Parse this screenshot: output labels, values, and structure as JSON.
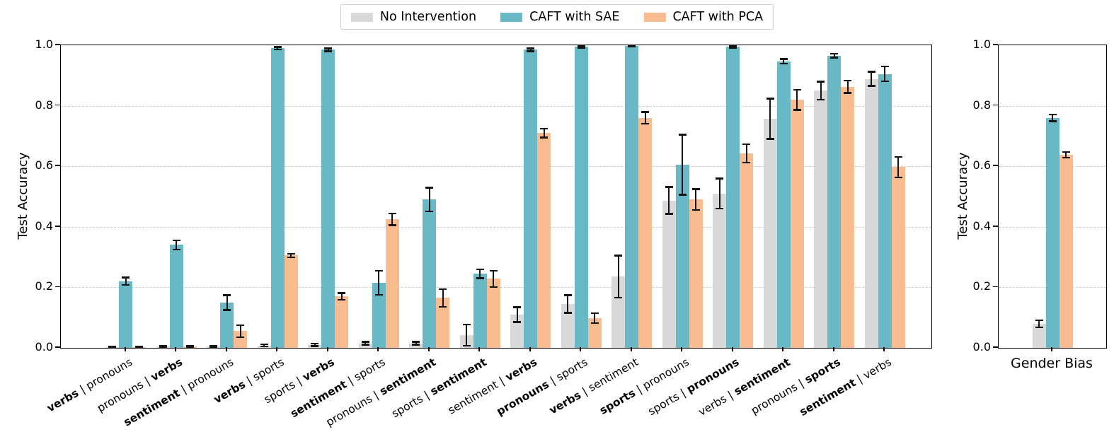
{
  "figure": {
    "background": "#ffffff"
  },
  "legend": {
    "items": [
      {
        "label": "No Intervention",
        "color": "#d9d9d9"
      },
      {
        "label": "CAFT with SAE",
        "color": "#69b8c6"
      },
      {
        "label": "CAFT with PCA",
        "color": "#f9bc90"
      }
    ]
  },
  "chart_data": [
    {
      "type": "bar",
      "title": "",
      "xlabel": "",
      "ylabel": "Test Accuracy",
      "ylim": [
        0,
        1
      ],
      "yticks": [
        0.0,
        0.2,
        0.4,
        0.6,
        0.8,
        1.0
      ],
      "gridlines_dashed_at": [
        0.2,
        0.4,
        0.6,
        0.8
      ],
      "legend_position": "top center, outside axes",
      "separator": " | ",
      "categories": [
        {
          "first": "verbs",
          "second": "pronouns",
          "bold": "first"
        },
        {
          "first": "pronouns",
          "second": "verbs",
          "bold": "second"
        },
        {
          "first": "sentiment",
          "second": "pronouns",
          "bold": "first"
        },
        {
          "first": "verbs",
          "second": "sports",
          "bold": "first"
        },
        {
          "first": "sports",
          "second": "verbs",
          "bold": "second"
        },
        {
          "first": "sentiment",
          "second": "sports",
          "bold": "first"
        },
        {
          "first": "pronouns",
          "second": "sentiment",
          "bold": "second"
        },
        {
          "first": "sports",
          "second": "sentiment",
          "bold": "second"
        },
        {
          "first": "sentiment",
          "second": "verbs",
          "bold": "second"
        },
        {
          "first": "pronouns",
          "second": "sports",
          "bold": "first"
        },
        {
          "first": "verbs",
          "second": "sentiment",
          "bold": "first"
        },
        {
          "first": "sports",
          "second": "pronouns",
          "bold": "first"
        },
        {
          "first": "sports",
          "second": "pronouns",
          "bold": "second"
        },
        {
          "first": "verbs",
          "second": "sentiment",
          "bold": "second"
        },
        {
          "first": "pronouns",
          "second": "sports",
          "bold": "second"
        },
        {
          "first": "sentiment",
          "second": "verbs",
          "bold": "first"
        }
      ],
      "series": [
        {
          "name": "No Intervention",
          "color": "#d9d9d9",
          "values": [
            0.002,
            0.004,
            0.004,
            0.008,
            0.01,
            0.015,
            0.015,
            0.042,
            0.11,
            0.145,
            0.235,
            0.487,
            0.51,
            0.757,
            0.85,
            0.889
          ],
          "errors": [
            0.002,
            0.003,
            0.003,
            0.004,
            0.005,
            0.005,
            0.005,
            0.035,
            0.025,
            0.03,
            0.07,
            0.045,
            0.05,
            0.067,
            0.03,
            0.024
          ]
        },
        {
          "name": "CAFT with SAE",
          "color": "#69b8c6",
          "values": [
            0.22,
            0.34,
            0.15,
            0.99,
            0.985,
            0.215,
            0.49,
            0.245,
            0.985,
            0.995,
            0.998,
            0.605,
            0.995,
            0.947,
            0.966,
            0.905
          ],
          "errors": [
            0.013,
            0.015,
            0.025,
            0.005,
            0.005,
            0.04,
            0.04,
            0.015,
            0.005,
            0.004,
            0.003,
            0.1,
            0.004,
            0.008,
            0.007,
            0.025
          ]
        },
        {
          "name": "CAFT with PCA",
          "color": "#f9bc90",
          "values": [
            0.003,
            0.004,
            0.055,
            0.305,
            0.17,
            0.425,
            0.165,
            0.228,
            0.71,
            0.098,
            0.76,
            0.49,
            0.643,
            0.82,
            0.863,
            0.597
          ],
          "errors": [
            0.002,
            0.003,
            0.02,
            0.006,
            0.012,
            0.02,
            0.03,
            0.027,
            0.015,
            0.017,
            0.02,
            0.035,
            0.031,
            0.034,
            0.021,
            0.035
          ]
        }
      ]
    },
    {
      "type": "bar",
      "title": "",
      "xlabel": "",
      "ylabel": "Test Accuracy",
      "ylim": [
        0,
        1
      ],
      "yticks": [
        0.0,
        0.2,
        0.4,
        0.6,
        0.8,
        1.0
      ],
      "gridlines_dashed_at": [
        0.2,
        0.4,
        0.6,
        0.8
      ],
      "categories": [
        "Gender Bias"
      ],
      "series": [
        {
          "name": "No Intervention",
          "color": "#d9d9d9",
          "values": [
            0.08
          ],
          "errors": [
            0.012
          ]
        },
        {
          "name": "CAFT with SAE",
          "color": "#69b8c6",
          "values": [
            0.76
          ],
          "errors": [
            0.012
          ]
        },
        {
          "name": "CAFT with PCA",
          "color": "#f9bc90",
          "values": [
            0.638
          ],
          "errors": [
            0.01
          ]
        }
      ]
    }
  ]
}
